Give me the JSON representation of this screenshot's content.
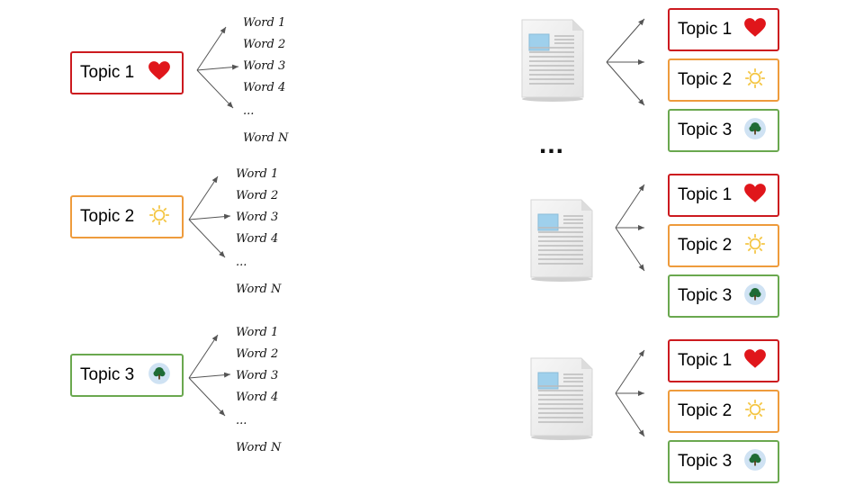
{
  "colors": {
    "topic1": "#cc1a1f",
    "topic2": "#ee9b3c",
    "topic3": "#6aa84f",
    "heart": "#e0161b",
    "sun": "#f4c542",
    "tree_bg": "#cfe2f3",
    "tree": "#1e6b35",
    "arrow": "#555555"
  },
  "topics": [
    {
      "label": "Topic 1",
      "icon": "heart-icon"
    },
    {
      "label": "Topic 2",
      "icon": "sun-icon"
    },
    {
      "label": "Topic 3",
      "icon": "tree-icon"
    }
  ],
  "words": [
    "Word 1",
    "Word 2",
    "Word 3",
    "Word 4",
    "...",
    "Word N"
  ],
  "middle_ellipsis": "...",
  "documents": [
    {
      "icon": "document-icon",
      "topics": [
        "Topic 1",
        "Topic 2",
        "Topic 3"
      ]
    },
    {
      "icon": "document-icon",
      "topics": [
        "Topic 1",
        "Topic 2",
        "Topic 3"
      ]
    },
    {
      "icon": "document-icon",
      "topics": [
        "Topic 1",
        "Topic 2",
        "Topic 3"
      ]
    }
  ]
}
